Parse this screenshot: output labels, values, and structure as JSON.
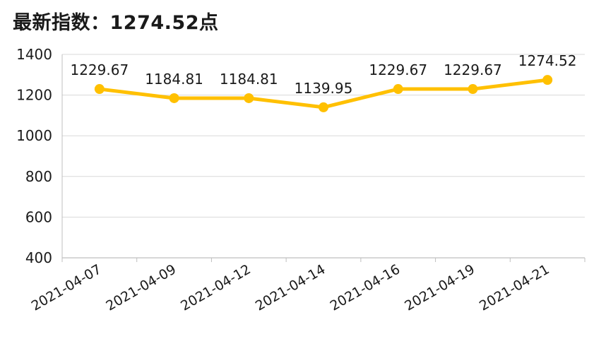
{
  "chart_data": {
    "type": "line",
    "title": "最新指数：1274.52点",
    "xlabel": "",
    "ylabel": "",
    "categories": [
      "2021-04-07",
      "2021-04-09",
      "2021-04-12",
      "2021-04-14",
      "2021-04-16",
      "2021-04-19",
      "2021-04-21"
    ],
    "series": [
      {
        "values": [
          1229.67,
          1184.81,
          1184.81,
          1139.95,
          1229.67,
          1229.67,
          1274.52
        ],
        "data_labels": [
          "1229.67",
          "1184.81",
          "1184.81",
          "1139.95",
          "1229.67",
          "1229.67",
          "1274.52"
        ]
      }
    ],
    "ylim": [
      400,
      1400
    ],
    "yticks": [
      400,
      600,
      800,
      1000,
      1200,
      1400
    ],
    "grid": true,
    "legend": "none",
    "colors": {
      "line": "#FFC000",
      "grid": "#d9d9d9",
      "axis": "#bfbfbf",
      "text": "#1a1a1a"
    }
  }
}
